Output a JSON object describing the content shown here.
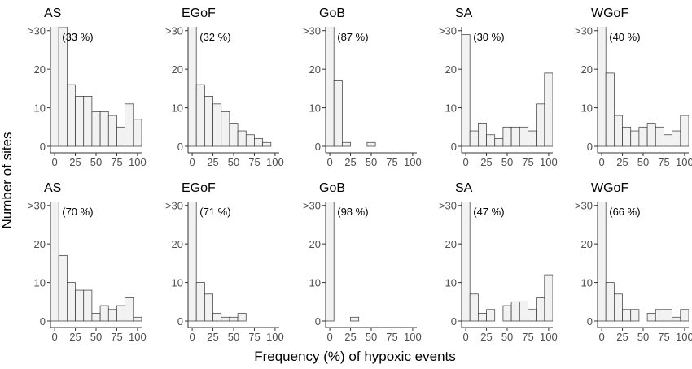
{
  "figure": {
    "ylabel": "Number of sites",
    "xlabel": "Frequency (%) of hypoxic events"
  },
  "style": {
    "bar_fill": "#f2f2f2",
    "bar_stroke": "#333333",
    "axis_color": "#333333",
    "text_color": "#000000",
    "tick_text_color": "#4d4d4d"
  },
  "chart_data": [
    {
      "type": "bar",
      "row": 1,
      "title": "AS",
      "annotation": "(33 %)",
      "x": [
        0,
        10,
        20,
        30,
        40,
        50,
        60,
        70,
        80,
        90,
        100
      ],
      "values": [
        ">30",
        31,
        16,
        13,
        13,
        9,
        9,
        8,
        5,
        11,
        7
      ],
      "ylim": [
        0,
        31
      ],
      "yticks": [
        "0",
        "10",
        "20",
        ">30"
      ],
      "xticks": [
        "0",
        "25",
        "50",
        "75",
        "100"
      ],
      "xlim": [
        -5,
        105
      ]
    },
    {
      "type": "bar",
      "row": 1,
      "title": "EGoF",
      "annotation": "(32 %)",
      "x": [
        0,
        10,
        20,
        30,
        40,
        50,
        60,
        70,
        80,
        90
      ],
      "values": [
        ">30",
        16,
        13,
        11,
        9,
        6,
        4,
        3,
        2,
        1
      ],
      "ylim": [
        0,
        31
      ],
      "yticks": [
        "0",
        "10",
        "20",
        ">30"
      ],
      "xticks": [
        "0",
        "25",
        "50",
        "75",
        "100"
      ],
      "xlim": [
        -5,
        105
      ]
    },
    {
      "type": "bar",
      "row": 1,
      "title": "GoB",
      "annotation": "(87 %)",
      "x": [
        0,
        10,
        20,
        30,
        40,
        50
      ],
      "values": [
        ">30",
        17,
        1,
        0,
        0,
        1
      ],
      "ylim": [
        0,
        31
      ],
      "yticks": [
        "0",
        "10",
        "20",
        ">30"
      ],
      "xticks": [
        "0",
        "25",
        "50",
        "75",
        "100"
      ],
      "xlim": [
        -5,
        105
      ]
    },
    {
      "type": "bar",
      "row": 1,
      "title": "SA",
      "annotation": "(30 %)",
      "x": [
        0,
        10,
        20,
        30,
        40,
        50,
        60,
        70,
        80,
        90,
        100
      ],
      "values": [
        29,
        4,
        6,
        3,
        2,
        5,
        5,
        5,
        4,
        11,
        19
      ],
      "ylim": [
        0,
        31
      ],
      "yticks": [
        "0",
        "10",
        "20",
        ">30"
      ],
      "xticks": [
        "0",
        "25",
        "50",
        "75",
        "100"
      ],
      "xlim": [
        -5,
        105
      ]
    },
    {
      "type": "bar",
      "row": 1,
      "title": "WGoF",
      "annotation": "(40 %)",
      "x": [
        0,
        10,
        20,
        30,
        40,
        50,
        60,
        70,
        80,
        90,
        100
      ],
      "values": [
        ">30",
        19,
        8,
        5,
        4,
        5,
        6,
        5,
        3,
        4,
        8
      ],
      "ylim": [
        0,
        31
      ],
      "yticks": [
        "0",
        "10",
        "20",
        ">30"
      ],
      "xticks": [
        "0",
        "25",
        "50",
        "75",
        "100"
      ],
      "xlim": [
        -5,
        105
      ]
    },
    {
      "type": "bar",
      "row": 2,
      "title": "AS",
      "annotation": "(70 %)",
      "x": [
        0,
        10,
        20,
        30,
        40,
        50,
        60,
        70,
        80,
        90,
        100
      ],
      "values": [
        ">30",
        17,
        10,
        8,
        8,
        2,
        4,
        3,
        4,
        6,
        1
      ],
      "ylim": [
        0,
        31
      ],
      "yticks": [
        "0",
        "10",
        "20",
        ">30"
      ],
      "xticks": [
        "0",
        "25",
        "50",
        "75",
        "100"
      ],
      "xlim": [
        -5,
        105
      ]
    },
    {
      "type": "bar",
      "row": 2,
      "title": "EGoF",
      "annotation": "(71 %)",
      "x": [
        0,
        10,
        20,
        30,
        40,
        50,
        60
      ],
      "values": [
        ">30",
        10,
        7,
        2,
        1,
        1,
        2
      ],
      "ylim": [
        0,
        31
      ],
      "yticks": [
        "0",
        "10",
        "20",
        ">30"
      ],
      "xticks": [
        "0",
        "25",
        "50",
        "75",
        "100"
      ],
      "xlim": [
        -5,
        105
      ]
    },
    {
      "type": "bar",
      "row": 2,
      "title": "GoB",
      "annotation": "(98 %)",
      "x": [
        0,
        10,
        20,
        30
      ],
      "values": [
        ">30",
        0,
        0,
        1
      ],
      "ylim": [
        0,
        31
      ],
      "yticks": [
        "0",
        "10",
        "20",
        ">30"
      ],
      "xticks": [
        "0",
        "25",
        "50",
        "75",
        "100"
      ],
      "xlim": [
        -5,
        105
      ]
    },
    {
      "type": "bar",
      "row": 2,
      "title": "SA",
      "annotation": "(47 %)",
      "x": [
        0,
        10,
        20,
        30,
        40,
        50,
        60,
        70,
        80,
        90,
        100
      ],
      "values": [
        ">30",
        7,
        2,
        3,
        0,
        4,
        5,
        5,
        3,
        6,
        12
      ],
      "ylim": [
        0,
        31
      ],
      "yticks": [
        "0",
        "10",
        "20",
        ">30"
      ],
      "xticks": [
        "0",
        "25",
        "50",
        "75",
        "100"
      ],
      "xlim": [
        -5,
        105
      ]
    },
    {
      "type": "bar",
      "row": 2,
      "title": "WGoF",
      "annotation": "(66 %)",
      "x": [
        0,
        10,
        20,
        30,
        40,
        50,
        60,
        70,
        80,
        90,
        100
      ],
      "values": [
        ">30",
        10,
        7,
        3,
        3,
        0,
        2,
        3,
        3,
        1,
        3
      ],
      "ylim": [
        0,
        31
      ],
      "yticks": [
        "0",
        "10",
        "20",
        ">30"
      ],
      "xticks": [
        "0",
        "25",
        "50",
        "75",
        "100"
      ],
      "xlim": [
        -5,
        105
      ]
    }
  ]
}
